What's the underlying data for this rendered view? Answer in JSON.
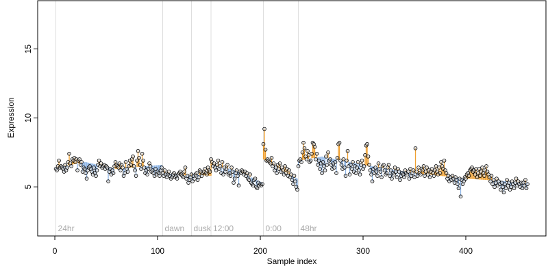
{
  "chart_data": {
    "type": "scatter",
    "x_label": "Sample index",
    "y_label": "Expression",
    "xlim": [
      -16.7,
      478
    ],
    "ylim": [
      1.44,
      18.5
    ],
    "xticks": [
      0,
      100,
      200,
      300,
      400
    ],
    "yticks": [
      5,
      10,
      15
    ],
    "point_color": "#000000",
    "above_color": "#f0a030",
    "below_color": "#8fb6e6",
    "marker_color": "#dddddd",
    "marker_text_color": "#aaaaaa",
    "markers": [
      {
        "x": 1,
        "label": "24hr"
      },
      {
        "x": 105,
        "label": "dawn"
      },
      {
        "x": 133,
        "label": "dusk"
      },
      {
        "x": 152,
        "label": "12:00"
      },
      {
        "x": 203,
        "label": "0:00"
      },
      {
        "x": 237,
        "label": "48hr"
      }
    ],
    "fit": {
      "x": [
        1,
        30,
        60,
        104,
        105,
        133,
        134,
        152,
        153,
        180,
        202,
        203,
        220,
        236,
        237,
        260,
        300,
        350,
        400,
        460
      ],
      "values": [
        6.4,
        6.8,
        6.3,
        6.6,
        6.0,
        5.8,
        5.9,
        5.8,
        6.6,
        6.1,
        5.3,
        7.0,
        6.2,
        5.6,
        6.9,
        7.2,
        6.6,
        6.0,
        5.6,
        5.3
      ]
    },
    "x": [
      1,
      2,
      3,
      4,
      5,
      6,
      7,
      8,
      9,
      10,
      11,
      12,
      13,
      14,
      15,
      16,
      17,
      18,
      19,
      20,
      21,
      22,
      23,
      24,
      25,
      26,
      27,
      28,
      29,
      30,
      31,
      32,
      33,
      34,
      35,
      36,
      37,
      38,
      39,
      40,
      41,
      42,
      43,
      44,
      45,
      46,
      47,
      48,
      49,
      50,
      51,
      52,
      53,
      54,
      55,
      56,
      57,
      58,
      59,
      60,
      61,
      62,
      63,
      64,
      65,
      66,
      67,
      68,
      69,
      70,
      71,
      72,
      73,
      74,
      75,
      76,
      77,
      78,
      79,
      80,
      81,
      82,
      83,
      84,
      85,
      86,
      87,
      88,
      89,
      90,
      91,
      92,
      93,
      94,
      95,
      96,
      97,
      98,
      99,
      100,
      101,
      102,
      103,
      104,
      105,
      106,
      107,
      108,
      109,
      110,
      111,
      112,
      113,
      114,
      115,
      116,
      117,
      118,
      119,
      120,
      121,
      122,
      123,
      124,
      125,
      126,
      127,
      128,
      129,
      130,
      131,
      132,
      133,
      134,
      135,
      136,
      137,
      138,
      139,
      140,
      141,
      142,
      143,
      144,
      145,
      146,
      147,
      148,
      149,
      150,
      151,
      152,
      153,
      154,
      155,
      156,
      157,
      158,
      159,
      160,
      161,
      162,
      163,
      164,
      165,
      166,
      167,
      168,
      169,
      170,
      171,
      172,
      173,
      174,
      175,
      176,
      177,
      178,
      179,
      180,
      181,
      182,
      183,
      184,
      185,
      186,
      187,
      188,
      189,
      190,
      191,
      192,
      193,
      194,
      195,
      196,
      197,
      198,
      199,
      200,
      201,
      202,
      203,
      204,
      205,
      206,
      207,
      208,
      209,
      210,
      211,
      212,
      213,
      214,
      215,
      216,
      217,
      218,
      219,
      220,
      221,
      222,
      223,
      224,
      225,
      226,
      227,
      228,
      229,
      230,
      231,
      232,
      233,
      234,
      235,
      236,
      237,
      238,
      239,
      240,
      241,
      242,
      243,
      244,
      245,
      246,
      247,
      248,
      249,
      250,
      251,
      252,
      253,
      254,
      255,
      256,
      257,
      258,
      259,
      260,
      261,
      262,
      263,
      264,
      265,
      266,
      267,
      268,
      269,
      270,
      271,
      272,
      273,
      274,
      275,
      276,
      277,
      278,
      279,
      280,
      281,
      282,
      283,
      284,
      285,
      286,
      287,
      288,
      289,
      290,
      291,
      292,
      293,
      294,
      295,
      296,
      297,
      298,
      299,
      300,
      301,
      302,
      303,
      304,
      305,
      306,
      307,
      308,
      309,
      310,
      311,
      312,
      313,
      314,
      315,
      316,
      317,
      318,
      319,
      320,
      321,
      322,
      323,
      324,
      325,
      326,
      327,
      328,
      329,
      330,
      331,
      332,
      333,
      334,
      335,
      336,
      337,
      338,
      339,
      340,
      341,
      342,
      343,
      344,
      345,
      346,
      347,
      348,
      349,
      350,
      351,
      352,
      353,
      354,
      355,
      356,
      357,
      358,
      359,
      360,
      361,
      362,
      363,
      364,
      365,
      366,
      367,
      368,
      369,
      370,
      371,
      372,
      373,
      374,
      375,
      376,
      377,
      378,
      379,
      380,
      381,
      382,
      383,
      384,
      385,
      386,
      387,
      388,
      389,
      390,
      391,
      392,
      393,
      394,
      395,
      396,
      397,
      398,
      399,
      400,
      401,
      402,
      403,
      404,
      405,
      406,
      407,
      408,
      409,
      410,
      411,
      412,
      413,
      414,
      415,
      416,
      417,
      418,
      419,
      420,
      421,
      422,
      423,
      424,
      425,
      426,
      427,
      428,
      429,
      430,
      431,
      432,
      433,
      434,
      435,
      436,
      437,
      438,
      439,
      440,
      441,
      442,
      443,
      444,
      445,
      446,
      447,
      448,
      449,
      450,
      451,
      452,
      453,
      454,
      455,
      456,
      457,
      458,
      459,
      460
    ],
    "values": [
      6.3,
      6.2,
      6.5,
      6.9,
      6.4,
      6.5,
      6.4,
      6.3,
      6.1,
      6.6,
      6.2,
      6.4,
      6.8,
      7.4,
      6.7,
      6.5,
      7.0,
      6.9,
      7.1,
      6.8,
      7.0,
      6.2,
      6.9,
      7.0,
      6.6,
      6.8,
      6.1,
      6.4,
      6.3,
      6.0,
      5.6,
      6.2,
      6.4,
      6.5,
      6.3,
      6.1,
      5.9,
      6.4,
      6.0,
      5.8,
      6.2,
      6.6,
      6.9,
      6.5,
      6.7,
      6.4,
      6.5,
      6.6,
      6.3,
      6.5,
      6.4,
      5.4,
      6.1,
      6.3,
      5.9,
      6.2,
      6.0,
      6.5,
      6.8,
      6.6,
      6.5,
      6.4,
      6.7,
      6.2,
      6.6,
      6.4,
      5.8,
      6.0,
      6.8,
      6.3,
      6.1,
      6.5,
      6.9,
      6.6,
      7.0,
      7.2,
      6.5,
      6.2,
      5.8,
      6.9,
      7.6,
      7.1,
      6.6,
      6.3,
      7.4,
      6.9,
      6.4,
      6.0,
      6.2,
      5.9,
      6.3,
      6.7,
      6.5,
      6.1,
      6.2,
      6.0,
      5.8,
      6.3,
      5.9,
      6.1,
      6.0,
      5.8,
      6.2,
      6.4,
      6.0,
      5.8,
      6.2,
      5.9,
      5.7,
      5.9,
      6.1,
      5.8,
      5.6,
      5.7,
      5.9,
      6.0,
      5.7,
      5.8,
      5.6,
      5.9,
      6.0,
      6.1,
      5.9,
      5.8,
      5.7,
      6.1,
      6.4,
      5.6,
      5.8,
      5.3,
      5.5,
      5.7,
      5.9,
      5.4,
      5.8,
      5.6,
      5.9,
      6.0,
      5.5,
      5.7,
      6.2,
      6.1,
      5.8,
      6.0,
      6.1,
      6.3,
      6.0,
      5.9,
      6.4,
      6.2,
      6.1,
      7.0,
      6.8,
      6.5,
      6.7,
      6.4,
      6.2,
      6.6,
      6.9,
      6.3,
      6.5,
      6.0,
      6.8,
      5.9,
      6.4,
      6.1,
      6.3,
      6.6,
      5.9,
      6.0,
      5.8,
      6.4,
      6.1,
      5.3,
      5.6,
      6.0,
      6.2,
      5.8,
      5.1,
      6.1,
      6.0,
      6.2,
      6.1,
      5.9,
      6.1,
      5.8,
      6.0,
      5.6,
      5.5,
      5.9,
      5.3,
      5.2,
      5.1,
      5.5,
      5.6,
      5.0,
      4.9,
      5.3,
      5.1,
      5.2,
      5.1,
      5.2,
      8.1,
      9.2,
      7.7,
      6.9,
      7.0,
      6.9,
      6.8,
      6.7,
      7.1,
      6.5,
      6.7,
      6.2,
      6.4,
      6.0,
      6.6,
      6.3,
      6.7,
      6.1,
      6.4,
      6.2,
      5.9,
      6.5,
      6.0,
      6.3,
      5.8,
      6.2,
      5.7,
      5.9,
      5.5,
      5.2,
      5.8,
      5.4,
      5.0,
      4.8,
      6.5,
      6.9,
      7.0,
      6.8,
      7.5,
      8.2,
      7.8,
      7.2,
      7.0,
      7.6,
      7.3,
      6.8,
      6.9,
      7.4,
      8.2,
      8.1,
      7.9,
      7.0,
      7.4,
      6.6,
      6.9,
      6.3,
      6.7,
      6.0,
      6.8,
      6.5,
      6.2,
      7.2,
      6.6,
      7.5,
      6.9,
      7.0,
      6.6,
      6.3,
      6.7,
      6.4,
      6.8,
      6.0,
      7.1,
      8.1,
      8.2,
      6.9,
      6.6,
      6.3,
      7.0,
      6.4,
      5.8,
      6.9,
      7.6,
      6.5,
      5.9,
      6.6,
      6.3,
      6.8,
      6.1,
      6.5,
      6.0,
      6.4,
      6.8,
      6.2,
      5.9,
      6.6,
      6.9,
      6.3,
      6.5,
      7.3,
      8.0,
      8.1,
      7.2,
      6.6,
      6.2,
      5.9,
      5.4,
      6.3,
      6.0,
      6.4,
      6.1,
      5.8,
      6.7,
      6.3,
      6.1,
      5.7,
      6.5,
      6.6,
      6.2,
      5.9,
      6.0,
      6.4,
      6.6,
      5.8,
      6.2,
      5.6,
      6.0,
      5.9,
      6.4,
      6.1,
      5.7,
      6.3,
      6.1,
      5.5,
      5.8,
      6.0,
      5.9,
      5.7,
      6.2,
      6.0,
      5.9,
      6.1,
      5.6,
      6.3,
      5.8,
      6.0,
      6.2,
      5.7,
      7.8,
      6.1,
      5.8,
      6.4,
      6.0,
      5.9,
      6.3,
      6.2,
      6.5,
      5.8,
      6.1,
      6.4,
      5.9,
      6.2,
      5.7,
      6.1,
      6.3,
      6.0,
      5.8,
      6.2,
      6.5,
      6.1,
      5.9,
      6.4,
      6.0,
      6.8,
      6.5,
      6.3,
      6.9,
      6.2,
      6.0,
      5.6,
      5.8,
      5.4,
      5.7,
      5.5,
      5.8,
      5.6,
      5.3,
      5.7,
      5.5,
      5.2,
      4.9,
      5.6,
      4.3,
      5.5,
      5.2,
      5.4,
      5.7,
      5.6,
      5.9,
      6.0,
      5.8,
      6.2,
      6.3,
      6.4,
      6.1,
      6.2,
      5.9,
      6.3,
      5.7,
      6.0,
      6.3,
      5.8,
      6.1,
      6.4,
      6.0,
      5.8,
      6.2,
      6.5,
      6.1,
      5.9,
      5.7,
      5.4,
      5.8,
      5.2,
      5.5,
      5.0,
      5.3,
      5.6,
      5.1,
      5.4,
      5.2,
      4.8,
      5.3,
      5.0,
      4.6,
      5.2,
      4.9,
      5.5,
      5.1,
      5.3,
      4.8,
      5.0,
      5.4,
      5.2,
      4.9,
      5.3,
      5.6,
      5.1,
      5.4,
      5.2,
      5.0,
      5.3,
      4.9,
      5.3,
      5.1,
      5.5,
      4.9,
      5.2
    ]
  }
}
